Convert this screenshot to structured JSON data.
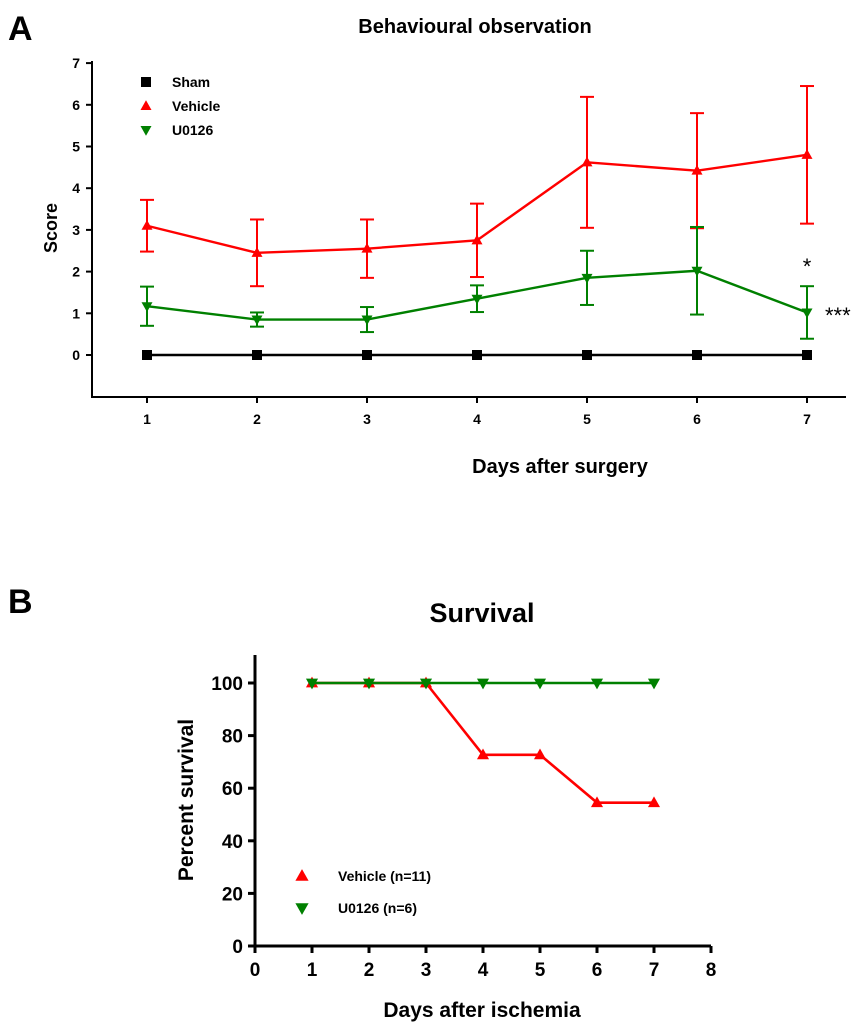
{
  "chart_data": [
    {
      "panel_label": "A",
      "type": "line",
      "title": "Behavioural observation",
      "xlabel": "Days after surgery",
      "ylabel": "Score",
      "x": [
        1,
        2,
        3,
        4,
        5,
        6,
        7
      ],
      "xlim": [
        0.5,
        7.5
      ],
      "ylim": [
        -1,
        7
      ],
      "xticks": [
        "1",
        "2",
        "3",
        "4",
        "5",
        "6",
        "7"
      ],
      "yticks": [
        0,
        1,
        2,
        3,
        4,
        5,
        6,
        7
      ],
      "grid": false,
      "legend_position": "top-left",
      "series": [
        {
          "name": "Sham",
          "marker": "square",
          "color": "#000000",
          "values": [
            0,
            0,
            0,
            0,
            0,
            0,
            0
          ],
          "errors": [
            0,
            0,
            0,
            0,
            0,
            0,
            0
          ]
        },
        {
          "name": "Vehicle",
          "marker": "triangle-up",
          "color": "#ff0000",
          "values": [
            3.1,
            2.45,
            2.55,
            2.75,
            4.62,
            4.42,
            4.8
          ],
          "errors": [
            0.62,
            0.8,
            0.7,
            0.88,
            1.57,
            1.38,
            1.65
          ]
        },
        {
          "name": "U0126",
          "marker": "triangle-down",
          "color": "#008000",
          "values": [
            1.17,
            0.85,
            0.85,
            1.35,
            1.85,
            2.02,
            1.02
          ],
          "errors": [
            0.47,
            0.17,
            0.3,
            0.32,
            0.65,
            1.05,
            0.63
          ]
        }
      ],
      "annotations": [
        {
          "text": "*",
          "x": 7,
          "y": 2.1
        },
        {
          "text": "***",
          "x": 7,
          "y": 1.0
        }
      ]
    },
    {
      "panel_label": "B",
      "type": "line",
      "title": "Survival",
      "xlabel": "Days after ischemia",
      "ylabel": "Percent survival",
      "x": [
        1,
        2,
        3,
        4,
        5,
        6,
        7
      ],
      "xlim": [
        0,
        8
      ],
      "ylim": [
        0,
        110
      ],
      "xticks": [
        "0",
        "1",
        "2",
        "3",
        "4",
        "5",
        "6",
        "7",
        "8"
      ],
      "yticks": [
        0,
        20,
        40,
        60,
        80,
        100
      ],
      "grid": false,
      "legend_position": "bottom-left",
      "series": [
        {
          "name": "Vehicle (n=11)",
          "marker": "triangle-up",
          "color": "#ff0000",
          "values": [
            100,
            100,
            100,
            72.7,
            72.7,
            54.5,
            54.5
          ]
        },
        {
          "name": "U0126 (n=6)",
          "marker": "triangle-down",
          "color": "#008000",
          "values": [
            100,
            100,
            100,
            100,
            100,
            100,
            100
          ]
        }
      ]
    }
  ]
}
